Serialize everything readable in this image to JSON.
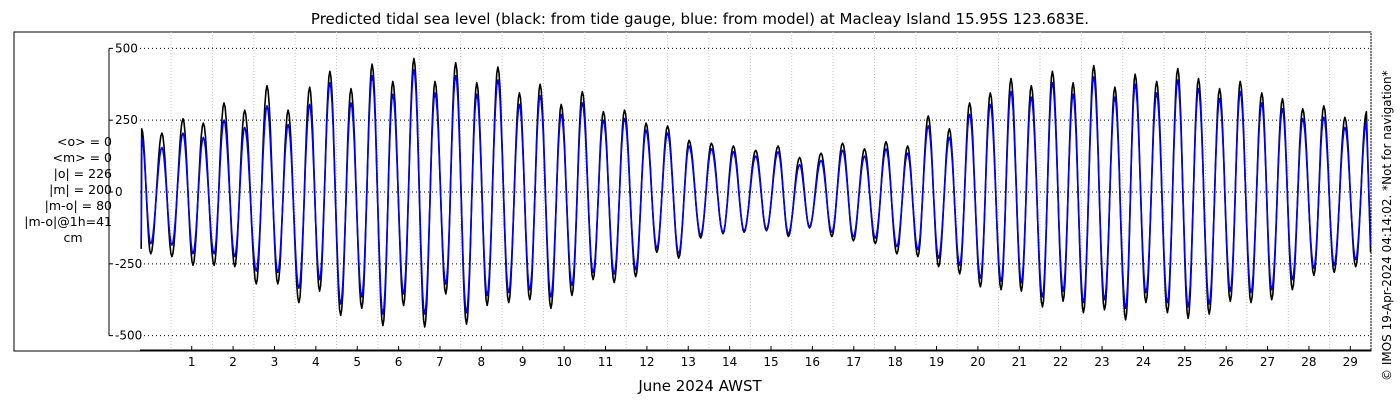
{
  "title": "Predicted tidal sea level (black: from tide gauge, blue: from model) at Macleay Island 15.95S 123.683E.",
  "stats": [
    "<o> = 0",
    "<m> = 0",
    "|o| = 226",
    "|m| = 200",
    "|m-o| = 80",
    "|m-o|@1h=41"
  ],
  "stats_unit": "cm",
  "copyright": "© IMOS 19-Apr-2024 04:14:02. *Not for navigation*",
  "chart_data": {
    "type": "line",
    "title": "Predicted tidal sea level (black: from tide gauge, blue: from model) at Macleay Island 15.95S 123.683E.",
    "xlabel": "June 2024 AWST",
    "ylabel": "",
    "unit": "cm",
    "xlim": [
      0.25,
      30.0
    ],
    "ylim": [
      -500,
      500
    ],
    "x_ticks": [
      1,
      2,
      3,
      4,
      5,
      6,
      7,
      8,
      9,
      10,
      11,
      12,
      13,
      14,
      15,
      16,
      17,
      18,
      19,
      20,
      21,
      22,
      23,
      24,
      25,
      26,
      27,
      28,
      29
    ],
    "y_ticks": [
      -500,
      -250,
      0,
      250,
      500
    ],
    "y_tick_labels": [
      "-500",
      "-250",
      "0",
      "250",
      "500"
    ],
    "grid": true,
    "legend": "none",
    "series": [
      {
        "color": "#000000",
        "x": [
          0.29,
          0.51,
          0.78,
          1.02,
          1.29,
          1.53,
          1.78,
          2.04,
          2.28,
          2.54,
          2.78,
          3.06,
          3.32,
          3.58,
          3.83,
          4.09,
          4.35,
          4.59,
          4.84,
          5.1,
          5.35,
          5.61,
          5.86,
          6.12,
          6.36,
          6.62,
          6.87,
          7.13,
          7.38,
          7.64,
          7.88,
          8.14,
          8.39,
          8.64,
          8.9,
          9.16,
          9.42,
          9.67,
          9.92,
          10.18,
          10.43,
          10.69,
          10.94,
          11.2,
          11.45,
          11.71,
          11.96,
          12.23,
          12.48,
          12.74,
          13.0,
          13.27,
          13.52,
          13.8,
          14.06,
          14.34,
          14.59,
          14.85,
          15.13,
          15.39,
          15.67,
          15.92,
          16.19,
          16.43,
          16.71,
          16.97,
          17.23,
          17.49,
          17.76,
          18.02,
          18.28,
          18.54,
          18.8,
          19.05,
          19.3,
          19.55,
          19.81,
          20.06,
          20.3,
          20.56,
          20.8,
          21.06,
          21.3,
          21.55,
          21.79,
          22.06,
          22.3,
          22.56,
          22.8,
          23.05,
          23.3,
          23.56,
          23.81,
          24.07,
          24.3,
          24.56,
          24.82,
          25.08,
          25.33,
          25.58,
          25.83,
          26.09,
          26.34,
          26.6,
          26.84,
          27.1,
          27.36,
          27.6,
          27.86,
          28.1,
          28.35,
          28.62,
          28.86,
          29.11,
          29.37,
          29.63,
          29.89
        ],
        "y": [
          220,
          -215,
          205,
          -225,
          255,
          -255,
          240,
          -255,
          310,
          -260,
          285,
          -320,
          370,
          -320,
          285,
          -385,
          365,
          -345,
          420,
          -430,
          360,
          -405,
          445,
          -465,
          385,
          -395,
          465,
          -470,
          385,
          -355,
          450,
          -460,
          380,
          -395,
          435,
          -385,
          345,
          -375,
          375,
          -405,
          305,
          -360,
          350,
          -305,
          280,
          -315,
          285,
          -295,
          240,
          -210,
          230,
          -230,
          180,
          -160,
          170,
          -145,
          160,
          -140,
          145,
          -135,
          160,
          -155,
          120,
          -125,
          135,
          -155,
          170,
          -170,
          150,
          -180,
          175,
          -215,
          160,
          -225,
          265,
          -260,
          220,
          -285,
          310,
          -330,
          345,
          -340,
          395,
          -345,
          370,
          -400,
          420,
          -380,
          380,
          -420,
          440,
          -410,
          365,
          -445,
          410,
          -385,
          385,
          -420,
          430,
          -440,
          395,
          -425,
          360,
          -380,
          385,
          -385,
          345,
          -375,
          325,
          -340,
          290,
          -290,
          300,
          -280,
          260,
          -260,
          280
        ]
      },
      {
        "color": "#0000ff",
        "x": [
          0.29,
          0.51,
          0.78,
          1.02,
          1.29,
          1.53,
          1.78,
          2.04,
          2.28,
          2.54,
          2.78,
          3.06,
          3.32,
          3.58,
          3.83,
          4.09,
          4.35,
          4.59,
          4.84,
          5.1,
          5.35,
          5.61,
          5.86,
          6.12,
          6.36,
          6.62,
          6.87,
          7.13,
          7.38,
          7.64,
          7.88,
          8.14,
          8.39,
          8.64,
          8.9,
          9.16,
          9.42,
          9.67,
          9.92,
          10.18,
          10.43,
          10.69,
          10.94,
          11.2,
          11.45,
          11.71,
          11.96,
          12.23,
          12.48,
          12.74,
          13.0,
          13.27,
          13.52,
          13.8,
          14.06,
          14.34,
          14.59,
          14.85,
          15.13,
          15.39,
          15.67,
          15.92,
          16.19,
          16.43,
          16.71,
          16.97,
          17.23,
          17.49,
          17.76,
          18.02,
          18.28,
          18.54,
          18.8,
          19.05,
          19.3,
          19.55,
          19.81,
          20.06,
          20.3,
          20.56,
          20.8,
          21.06,
          21.3,
          21.55,
          21.79,
          22.06,
          22.3,
          22.56,
          22.8,
          23.05,
          23.3,
          23.56,
          23.81,
          24.07,
          24.3,
          24.56,
          24.82,
          25.08,
          25.33,
          25.58,
          25.83,
          26.09,
          26.34,
          26.6,
          26.84,
          27.1,
          27.36,
          27.6,
          27.86,
          28.1,
          28.35,
          28.62,
          28.86,
          29.11,
          29.37,
          29.63,
          29.89
        ],
        "y": [
          190,
          -180,
          155,
          -185,
          205,
          -215,
          190,
          -215,
          250,
          -225,
          225,
          -275,
          300,
          -280,
          235,
          -335,
          305,
          -305,
          380,
          -390,
          310,
          -365,
          405,
          -425,
          340,
          -355,
          425,
          -425,
          345,
          -320,
          405,
          -420,
          340,
          -360,
          390,
          -350,
          305,
          -340,
          335,
          -365,
          270,
          -325,
          310,
          -280,
          250,
          -285,
          255,
          -270,
          215,
          -195,
          205,
          -215,
          160,
          -150,
          150,
          -140,
          140,
          -135,
          125,
          -130,
          140,
          -145,
          95,
          -120,
          110,
          -140,
          145,
          -155,
          125,
          -160,
          150,
          -190,
          135,
          -200,
          230,
          -230,
          190,
          -255,
          270,
          -300,
          305,
          -310,
          350,
          -315,
          330,
          -365,
          380,
          -345,
          340,
          -385,
          400,
          -375,
          330,
          -405,
          375,
          -350,
          345,
          -385,
          390,
          -400,
          360,
          -390,
          325,
          -345,
          350,
          -350,
          310,
          -340,
          290,
          -305,
          255,
          -265,
          260,
          -255,
          225,
          -235,
          245
        ]
      }
    ]
  }
}
